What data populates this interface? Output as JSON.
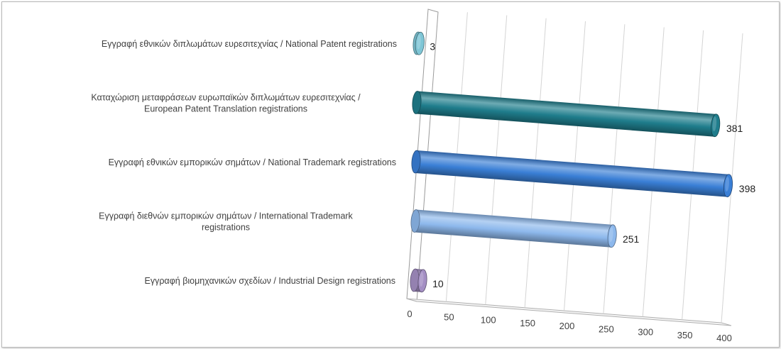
{
  "chart_data": {
    "type": "bar",
    "orientation": "horizontal",
    "style": "3d-cylinder",
    "title": "",
    "xlabel": "",
    "ylabel": "",
    "categories": [
      [
        "Εγγραφή  εθνικών διπλωμάτων ευρεσιτεχνίας / National Patent registrations"
      ],
      [
        "Καταχώριση μεταφράσεων ευρωπαϊκών διπλωμάτων ευρεσιτεχνίας /",
        "European Patent Translation registrations"
      ],
      [
        "Εγγραφή  εθνικών εμπορικών σημάτων / National Trademark registrations"
      ],
      [
        "Εγγραφή  διεθνών εμπορικών σημάτων / International Trademark",
        "registrations"
      ],
      [
        "Εγγραφή  βιομηχανικών σχεδίων / Industrial Design registrations"
      ]
    ],
    "values": [
      3,
      381,
      398,
      251,
      10
    ],
    "value_labels": [
      "3",
      "381",
      "398",
      "251",
      "10"
    ],
    "colors": [
      "#7fc6d6",
      "#1f7d8c",
      "#3a7fd6",
      "#8db8ec",
      "#a48fc4"
    ],
    "xlim": [
      0,
      400
    ],
    "x_ticks": [
      "0",
      "50",
      "100",
      "150",
      "200",
      "250",
      "300",
      "350",
      "400"
    ],
    "grid": true,
    "legend": "none"
  }
}
